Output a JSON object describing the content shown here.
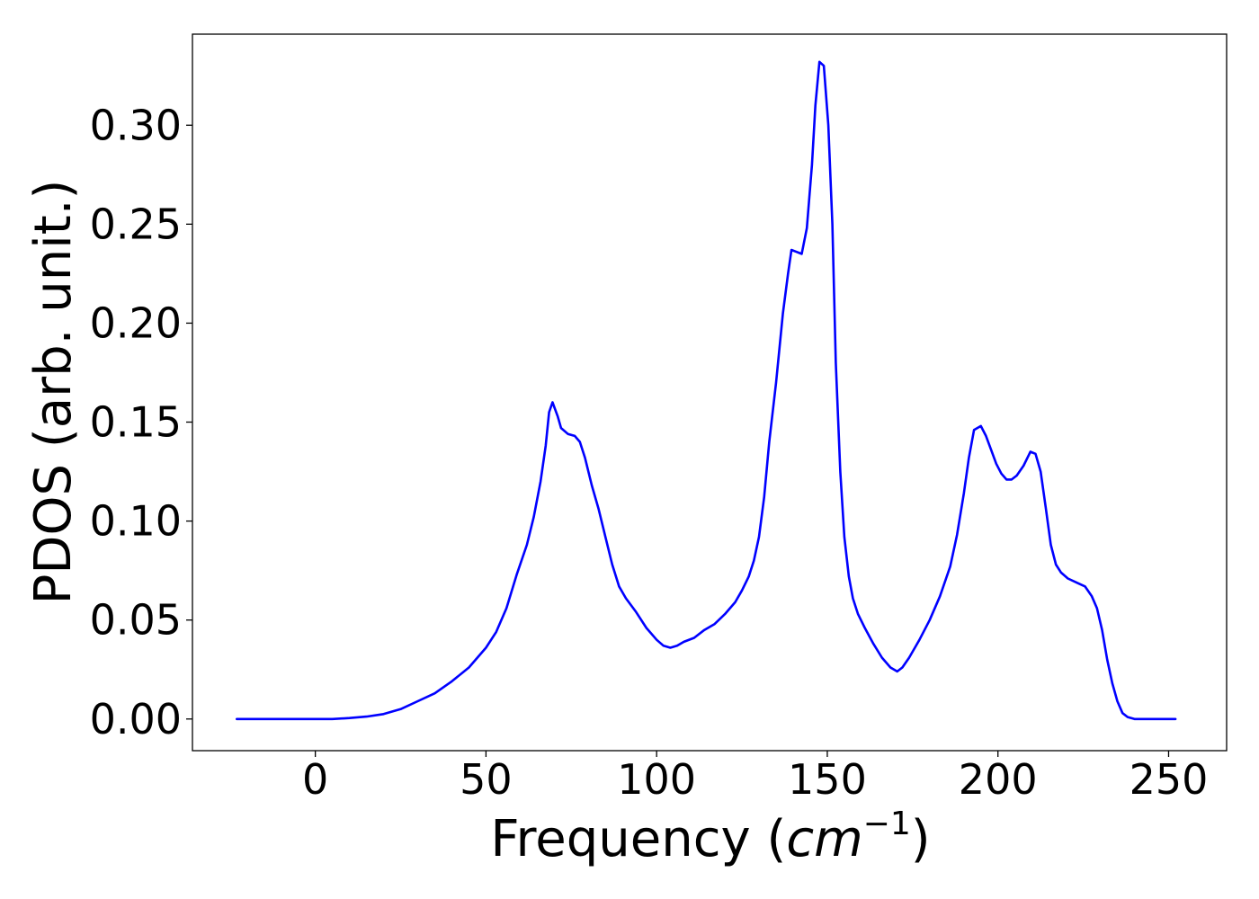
{
  "chart_data": {
    "type": "line",
    "xlabel_text": "Frequency (",
    "xlabel_math": "cm",
    "xlabel_exponent": "−1",
    "xlabel_close": ")",
    "ylabel": "PDOS (arb. unit.)",
    "xlim": [
      -36,
      267
    ],
    "ylim": [
      -0.016,
      0.346
    ],
    "x_ticks": [
      0,
      50,
      100,
      150,
      200,
      250
    ],
    "x_tick_labels": [
      "0",
      "50",
      "100",
      "150",
      "200",
      "250"
    ],
    "y_ticks": [
      0.0,
      0.05,
      0.1,
      0.15,
      0.2,
      0.25,
      0.3
    ],
    "y_tick_labels": [
      "0.00",
      "0.05",
      "0.10",
      "0.15",
      "0.20",
      "0.25",
      "0.30"
    ],
    "grid": false,
    "legend": "none",
    "series": [
      {
        "color": "#0000ff",
        "points": [
          [
            -23,
            0.0
          ],
          [
            0,
            0.0
          ],
          [
            5,
            0.0
          ],
          [
            10,
            0.0005
          ],
          [
            15,
            0.0012
          ],
          [
            20,
            0.0025
          ],
          [
            25,
            0.005
          ],
          [
            30,
            0.009
          ],
          [
            35,
            0.013
          ],
          [
            40,
            0.019
          ],
          [
            45,
            0.026
          ],
          [
            50,
            0.036
          ],
          [
            53,
            0.044
          ],
          [
            56,
            0.056
          ],
          [
            59,
            0.073
          ],
          [
            62,
            0.088
          ],
          [
            64,
            0.102
          ],
          [
            66,
            0.12
          ],
          [
            67.5,
            0.138
          ],
          [
            68.5,
            0.155
          ],
          [
            69.5,
            0.16
          ],
          [
            71,
            0.153
          ],
          [
            72,
            0.147
          ],
          [
            74,
            0.144
          ],
          [
            76,
            0.143
          ],
          [
            77.5,
            0.14
          ],
          [
            79,
            0.132
          ],
          [
            81,
            0.118
          ],
          [
            83,
            0.106
          ],
          [
            85,
            0.092
          ],
          [
            87,
            0.078
          ],
          [
            89,
            0.067
          ],
          [
            91,
            0.061
          ],
          [
            94,
            0.054
          ],
          [
            97,
            0.046
          ],
          [
            100,
            0.04
          ],
          [
            102,
            0.037
          ],
          [
            104,
            0.036
          ],
          [
            106,
            0.037
          ],
          [
            108,
            0.039
          ],
          [
            111,
            0.041
          ],
          [
            114,
            0.045
          ],
          [
            117,
            0.048
          ],
          [
            120,
            0.053
          ],
          [
            123,
            0.059
          ],
          [
            125,
            0.065
          ],
          [
            127,
            0.072
          ],
          [
            128.5,
            0.08
          ],
          [
            130,
            0.092
          ],
          [
            131.5,
            0.112
          ],
          [
            133,
            0.14
          ],
          [
            135,
            0.17
          ],
          [
            137,
            0.205
          ],
          [
            138.5,
            0.225
          ],
          [
            139.5,
            0.237
          ],
          [
            141,
            0.236
          ],
          [
            142.5,
            0.235
          ],
          [
            144,
            0.248
          ],
          [
            145.5,
            0.28
          ],
          [
            146.5,
            0.31
          ],
          [
            147.7,
            0.332
          ],
          [
            149,
            0.33
          ],
          [
            150.3,
            0.3
          ],
          [
            151.5,
            0.25
          ],
          [
            152.5,
            0.18
          ],
          [
            153.8,
            0.125
          ],
          [
            155,
            0.092
          ],
          [
            156.3,
            0.072
          ],
          [
            157.5,
            0.061
          ],
          [
            159,
            0.053
          ],
          [
            161,
            0.046
          ],
          [
            163.5,
            0.038
          ],
          [
            166,
            0.031
          ],
          [
            168.5,
            0.026
          ],
          [
            170.5,
            0.024
          ],
          [
            172,
            0.026
          ],
          [
            174,
            0.031
          ],
          [
            177,
            0.04
          ],
          [
            180,
            0.05
          ],
          [
            183,
            0.062
          ],
          [
            186,
            0.077
          ],
          [
            188,
            0.093
          ],
          [
            190,
            0.114
          ],
          [
            191.5,
            0.132
          ],
          [
            193,
            0.146
          ],
          [
            195,
            0.148
          ],
          [
            196.5,
            0.143
          ],
          [
            198,
            0.136
          ],
          [
            199.5,
            0.129
          ],
          [
            201,
            0.124
          ],
          [
            202.5,
            0.121
          ],
          [
            204,
            0.121
          ],
          [
            205.5,
            0.123
          ],
          [
            207.5,
            0.128
          ],
          [
            209.5,
            0.135
          ],
          [
            211,
            0.134
          ],
          [
            212.5,
            0.125
          ],
          [
            214,
            0.107
          ],
          [
            215.5,
            0.088
          ],
          [
            217,
            0.078
          ],
          [
            218.5,
            0.074
          ],
          [
            220.5,
            0.071
          ],
          [
            223,
            0.069
          ],
          [
            225.5,
            0.067
          ],
          [
            227.5,
            0.062
          ],
          [
            229,
            0.056
          ],
          [
            230.5,
            0.045
          ],
          [
            232,
            0.03
          ],
          [
            233.5,
            0.018
          ],
          [
            235,
            0.009
          ],
          [
            236.5,
            0.003
          ],
          [
            238,
            0.001
          ],
          [
            240,
            0.0
          ],
          [
            245,
            0.0
          ],
          [
            252,
            0.0
          ]
        ]
      }
    ]
  }
}
